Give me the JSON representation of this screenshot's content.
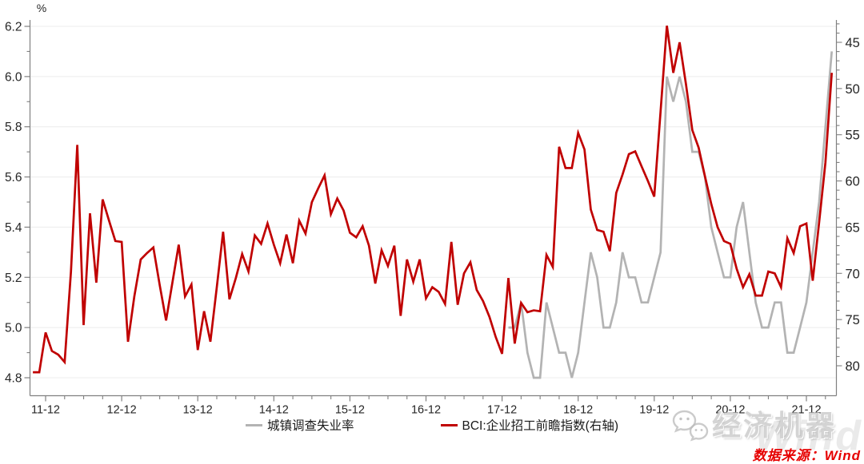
{
  "chart_data": {
    "type": "line",
    "title": "",
    "left_axis_unit": "%",
    "x_epoch": "2011-12",
    "x_tick_labels": [
      "11-12",
      "12-12",
      "13-12",
      "14-12",
      "15-12",
      "16-12",
      "17-12",
      "18-12",
      "19-12",
      "20-12",
      "21-12"
    ],
    "left_axis": {
      "min": 4.8,
      "max": 6.2,
      "major_ticks": [
        4.8,
        5.0,
        5.2,
        5.4,
        5.6,
        5.8,
        6.0,
        6.2
      ],
      "minor_step": 0.1
    },
    "right_axis": {
      "min": 45,
      "max": 80,
      "inverted": true,
      "major_ticks": [
        45,
        50,
        55,
        60,
        65,
        70,
        75,
        80
      ],
      "minor_step": 1
    },
    "grid": "horizontal",
    "legend_position": "bottom",
    "series": [
      {
        "name": "城镇调查失业率",
        "axis": "left",
        "color": "#b3b3b3",
        "start_month": "2018-01",
        "values": [
          5.0,
          5.0,
          5.1,
          4.9,
          4.8,
          4.8,
          5.1,
          5.0,
          4.9,
          4.9,
          4.8,
          4.9,
          5.1,
          5.3,
          5.2,
          5.0,
          5.0,
          5.1,
          5.3,
          5.2,
          5.2,
          5.1,
          5.1,
          5.2,
          5.3,
          6.0,
          5.9,
          6.0,
          5.9,
          5.7,
          5.7,
          5.6,
          5.4,
          5.3,
          5.2,
          5.2,
          5.4,
          5.5,
          5.3,
          5.1,
          5.0,
          5.0,
          5.1,
          5.1,
          4.9,
          4.9,
          5.0,
          5.1,
          5.3,
          5.5,
          5.8,
          6.1
        ]
      },
      {
        "name": "BCI:企业招工前瞻指数(右轴)",
        "axis": "right",
        "color": "#c00000",
        "start_month": "2011-10",
        "values": [
          80.7,
          80.7,
          76.4,
          78.4,
          78.8,
          79.6,
          69.8,
          56.1,
          75.6,
          63.5,
          71.0,
          62.0,
          64.3,
          66.5,
          66.6,
          77.4,
          72.5,
          68.5,
          67.8,
          67.2,
          71.3,
          75.1,
          71.0,
          66.9,
          72.5,
          71.2,
          78.3,
          74.1,
          77.4,
          71.5,
          65.5,
          72.8,
          70.5,
          67.9,
          69.8,
          65.9,
          66.8,
          64.6,
          66.9,
          68.9,
          65.8,
          68.9,
          64.3,
          65.7,
          62.3,
          60.8,
          59.4,
          63.6,
          61.9,
          63.2,
          65.6,
          66.1,
          64.9,
          67.0,
          71.1,
          67.5,
          69.2,
          67.0,
          74.6,
          68.5,
          70.9,
          68.5,
          72.7,
          71.5,
          72.0,
          73.3,
          66.6,
          73.4,
          70.0,
          68.8,
          71.8,
          73.0,
          74.7,
          76.9,
          78.7,
          70.5,
          77.6,
          73.2,
          74.2,
          74.0,
          74.1,
          68.0,
          69.3,
          56.3,
          58.6,
          58.6,
          54.8,
          56.6,
          63.1,
          65.3,
          65.5,
          67.6,
          61.3,
          59.3,
          57.1,
          56.8,
          58.4,
          60.0,
          61.7,
          52.5,
          43.2,
          48.3,
          45.0,
          49.5,
          54.5,
          56.4,
          59.5,
          62.5,
          65.0,
          66.5,
          66.8,
          69.5,
          71.5,
          70.1,
          72.4,
          72.4,
          69.8,
          70.0,
          71.5,
          66.2,
          67.8,
          64.9,
          64.6,
          70.8,
          64.5,
          58.0,
          48.3
        ]
      }
    ]
  },
  "legend": {
    "items": [
      {
        "label": "城镇调查失业率",
        "color": "#b3b3b3"
      },
      {
        "label": "BCI:企业招工前瞻指数(右轴)",
        "color": "#c00000"
      }
    ]
  },
  "watermark": {
    "brand_text": "经济机器",
    "wind_text": "Wind"
  },
  "source": {
    "text": "数据来源：Wind"
  },
  "style": {
    "axis_color": "#808080",
    "grid_color": "#ececec",
    "tick_label_color": "#262626"
  }
}
